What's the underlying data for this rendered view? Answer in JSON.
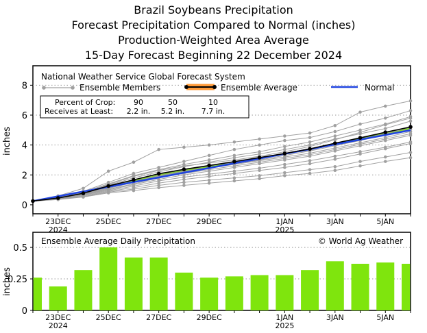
{
  "header": {
    "title": "Brazil Soybeans Precipitation",
    "subtitle1": "Forecast Precipitation Compared to Normal (inches)",
    "subtitle2": "Production-Weighted Area Average",
    "subtitle3": "15-Day Forecast Beginning 22 December 2024"
  },
  "legend": {
    "source": "National Weather Service Global Forecast System",
    "members": "Ensemble Members",
    "average": "Ensemble Average",
    "normal": "Normal"
  },
  "crop_box": {
    "row1_label": "Percent of Crop:",
    "row1_values": [
      "90",
      "50",
      "10"
    ],
    "row2_label": "Receives at Least:",
    "row2_values": [
      "2.2 in.",
      "5.2 in.",
      "7.7 in."
    ]
  },
  "colors": {
    "members": "#a0a0a0",
    "average": "#000000",
    "band": "#7ed321",
    "normal": "#1f44e0",
    "bars": "#7fe50d"
  },
  "chart_data": [
    {
      "type": "line",
      "title": "Cumulative Precipitation",
      "ylabel": "inches",
      "xlim": [
        0,
        15
      ],
      "ylim": [
        -0.6,
        9.3
      ],
      "yticks": [
        "0",
        "2",
        "4",
        "6",
        "8"
      ],
      "xticks": [
        {
          "label": "23DEC",
          "sub": "2024",
          "x": 1
        },
        {
          "label": "25DEC",
          "sub": "",
          "x": 3
        },
        {
          "label": "27DEC",
          "sub": "",
          "x": 5
        },
        {
          "label": "29DEC",
          "sub": "",
          "x": 7
        },
        {
          "label": "1JAN",
          "sub": "2025",
          "x": 10
        },
        {
          "label": "3JAN",
          "sub": "",
          "x": 12
        },
        {
          "label": "5JAN",
          "sub": "",
          "x": 14
        }
      ],
      "x": [
        0,
        1,
        2,
        3,
        4,
        5,
        6,
        7,
        8,
        9,
        10,
        11,
        12,
        13,
        14,
        15
      ],
      "ensemble_average": [
        0.25,
        0.45,
        0.77,
        1.26,
        1.67,
        2.08,
        2.37,
        2.63,
        2.89,
        3.16,
        3.43,
        3.74,
        4.12,
        4.48,
        4.85,
        5.21
      ],
      "normal": [
        0.25,
        0.57,
        0.89,
        1.2,
        1.52,
        1.83,
        2.15,
        2.46,
        2.78,
        3.09,
        3.41,
        3.72,
        4.04,
        4.36,
        4.67,
        4.99
      ],
      "members": [
        [
          0.25,
          0.6,
          1.1,
          2.25,
          2.85,
          3.7,
          3.85,
          4.0,
          4.2,
          4.4,
          4.6,
          4.8,
          5.3,
          6.2,
          6.6,
          6.95
        ],
        [
          0.25,
          0.5,
          0.9,
          1.5,
          2.1,
          2.5,
          2.9,
          3.3,
          3.7,
          4.0,
          4.3,
          4.5,
          4.9,
          5.4,
          5.8,
          6.3
        ],
        [
          0.25,
          0.48,
          0.85,
          1.4,
          1.95,
          2.35,
          2.7,
          3.0,
          3.3,
          3.55,
          3.9,
          4.2,
          4.6,
          5.0,
          5.4,
          5.9
        ],
        [
          0.25,
          0.46,
          0.8,
          1.3,
          1.8,
          2.2,
          2.55,
          2.85,
          3.15,
          3.4,
          3.7,
          4.0,
          4.4,
          4.75,
          5.1,
          5.6
        ],
        [
          0.25,
          0.44,
          0.76,
          1.2,
          1.65,
          2.05,
          2.35,
          2.6,
          2.85,
          3.1,
          3.4,
          3.65,
          4.05,
          4.4,
          4.75,
          5.2
        ],
        [
          0.25,
          0.42,
          0.72,
          1.1,
          1.5,
          1.9,
          2.2,
          2.45,
          2.7,
          2.95,
          3.2,
          3.45,
          3.8,
          4.15,
          4.5,
          4.9
        ],
        [
          0.25,
          0.4,
          0.68,
          1.0,
          1.35,
          1.7,
          2.0,
          2.25,
          2.5,
          2.75,
          3.0,
          3.25,
          3.6,
          3.95,
          4.3,
          4.65
        ],
        [
          0.25,
          0.38,
          0.6,
          0.9,
          1.15,
          1.45,
          1.7,
          1.9,
          2.1,
          2.3,
          2.5,
          2.75,
          3.05,
          3.4,
          3.75,
          4.1
        ],
        [
          0.25,
          0.36,
          0.55,
          0.85,
          1.05,
          1.3,
          1.5,
          1.65,
          1.8,
          1.95,
          2.15,
          2.35,
          2.55,
          2.9,
          3.2,
          3.5
        ],
        [
          0.25,
          0.35,
          0.52,
          0.8,
          0.95,
          1.15,
          1.3,
          1.45,
          1.6,
          1.75,
          1.95,
          2.1,
          2.3,
          2.6,
          2.9,
          3.15
        ],
        [
          0.25,
          0.45,
          0.8,
          1.35,
          1.9,
          2.3,
          2.6,
          2.8,
          3.0,
          3.25,
          3.55,
          3.9,
          4.35,
          4.85,
          5.35,
          5.8
        ],
        [
          0.25,
          0.43,
          0.74,
          1.15,
          1.55,
          1.95,
          2.25,
          2.5,
          2.75,
          3.0,
          3.3,
          3.6,
          3.95,
          4.3,
          4.7,
          5.05
        ],
        [
          0.25,
          0.41,
          0.7,
          1.05,
          1.4,
          1.8,
          2.1,
          2.35,
          2.6,
          2.85,
          3.1,
          3.35,
          3.7,
          4.05,
          4.4,
          4.75
        ],
        [
          0.25,
          0.39,
          0.65,
          0.95,
          1.25,
          1.6,
          1.85,
          2.05,
          2.25,
          2.45,
          2.7,
          2.95,
          3.25,
          3.55,
          3.85,
          4.2
        ]
      ]
    },
    {
      "type": "bar",
      "title": "Ensemble Average Daily Precipitation",
      "ylabel": "inches",
      "ylim": [
        0,
        0.62
      ],
      "yticks": [
        "0",
        "0.25",
        "0.5"
      ],
      "x": [
        0,
        1,
        2,
        3,
        4,
        5,
        6,
        7,
        8,
        9,
        10,
        11,
        12,
        13,
        14,
        15
      ],
      "values": [
        0.26,
        0.19,
        0.32,
        0.5,
        0.42,
        0.42,
        0.3,
        0.26,
        0.27,
        0.28,
        0.28,
        0.32,
        0.39,
        0.37,
        0.38,
        0.37
      ],
      "credit": "© World Ag Weather"
    }
  ]
}
